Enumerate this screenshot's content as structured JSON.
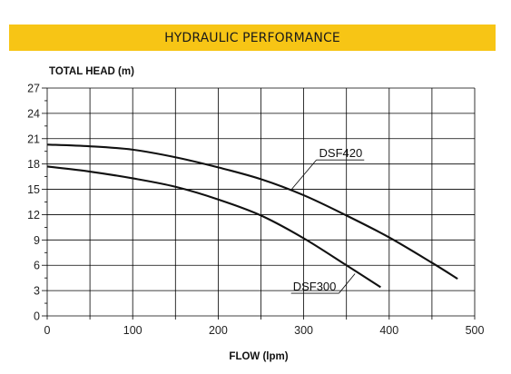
{
  "banner": {
    "title": "HYDRAULIC PERFORMANCE"
  },
  "colors": {
    "banner": "#f7c515",
    "grid": "#000000",
    "curve": "#111111"
  },
  "chart_data": {
    "type": "line",
    "title": "",
    "xlabel": "FLOW (lpm)",
    "ylabel": "TOTAL HEAD (m)",
    "xlim": [
      0,
      500
    ],
    "ylim": [
      0,
      27
    ],
    "x_ticks": [
      "0",
      "100",
      "200",
      "300",
      "400",
      "500"
    ],
    "y_ticks": [
      "0",
      "3",
      "6",
      "9",
      "12",
      "15",
      "18",
      "21",
      "24",
      "27"
    ],
    "grid": true,
    "series": [
      {
        "name": "DSF420",
        "x": [
          0,
          50,
          100,
          150,
          200,
          250,
          300,
          350,
          400,
          450,
          480
        ],
        "y": [
          20.3,
          20.1,
          19.7,
          18.8,
          17.6,
          16.2,
          14.3,
          11.9,
          9.3,
          6.3,
          4.4
        ]
      },
      {
        "name": "DSF300",
        "x": [
          0,
          50,
          100,
          150,
          200,
          250,
          300,
          350,
          390
        ],
        "y": [
          17.7,
          17.1,
          16.3,
          15.3,
          13.8,
          11.9,
          9.2,
          6.0,
          3.4
        ]
      }
    ]
  }
}
